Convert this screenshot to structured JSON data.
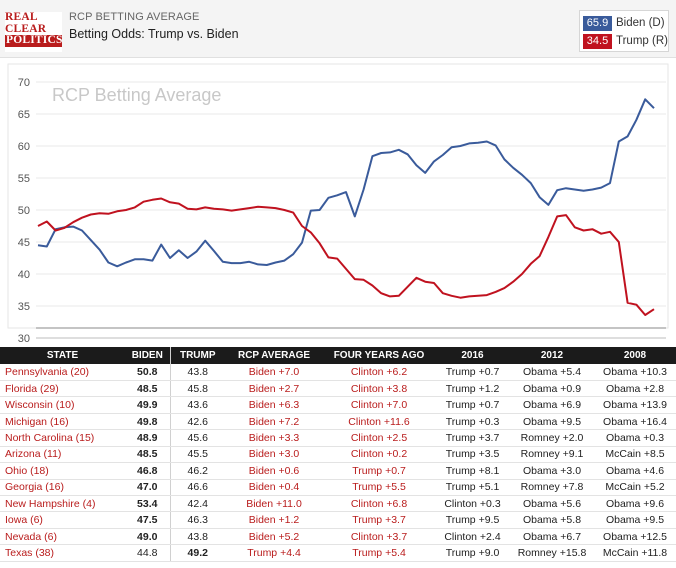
{
  "header": {
    "logo_lines": [
      "REAL",
      "CLEAR",
      "POLITICS"
    ],
    "subtitle": "RCP BETTING AVERAGE",
    "title": "Betting Odds: Trump vs. Biden"
  },
  "legend": [
    {
      "value": "65.9",
      "name": "Biden (D)",
      "color": "#3a5b9b"
    },
    {
      "value": "34.5",
      "name": "Trump (R)",
      "color": "#c0121f"
    }
  ],
  "chart_data": {
    "type": "line",
    "title": "RCP Betting Average",
    "ylim": [
      30,
      70
    ],
    "yticks": [
      "30",
      "35",
      "40",
      "45",
      "50",
      "55",
      "60",
      "65",
      "70"
    ],
    "grid": true,
    "series": [
      {
        "name": "Biden (D)",
        "color": "#3a5b9b",
        "values": [
          44.5,
          44.3,
          47.0,
          47.3,
          47.4,
          46.8,
          45.3,
          43.8,
          41.8,
          41.2,
          41.8,
          42.3,
          42.3,
          42.1,
          44.6,
          42.5,
          43.7,
          42.5,
          43.5,
          45.2,
          43.6,
          41.9,
          41.7,
          41.7,
          41.9,
          41.5,
          41.4,
          41.8,
          42.1,
          43.1,
          44.9,
          49.9,
          50.0,
          51.9,
          52.3,
          52.8,
          49.0,
          53.2,
          58.4,
          58.9,
          59.0,
          59.4,
          58.7,
          57.0,
          55.8,
          57.6,
          58.6,
          59.8,
          60.0,
          60.4,
          60.5,
          60.7,
          60.1,
          57.9,
          56.6,
          55.5,
          54.2,
          52.0,
          50.8,
          53.1,
          53.4,
          53.2,
          53.0,
          53.2,
          53.5,
          54.2,
          60.7,
          61.5,
          64.1,
          67.3,
          65.9
        ]
      },
      {
        "name": "Trump (R)",
        "color": "#c0121f",
        "values": [
          47.5,
          48.2,
          46.8,
          47.2,
          48.1,
          48.8,
          49.3,
          49.5,
          49.4,
          49.8,
          50.0,
          50.4,
          51.3,
          51.6,
          51.8,
          51.2,
          51.0,
          50.2,
          50.1,
          50.4,
          50.2,
          50.1,
          49.9,
          50.1,
          50.3,
          50.5,
          50.4,
          50.3,
          50.0,
          49.6,
          47.5,
          46.5,
          44.8,
          42.6,
          42.4,
          40.8,
          39.2,
          39.1,
          38.2,
          37.0,
          36.5,
          36.6,
          38.0,
          39.4,
          38.8,
          38.6,
          37.0,
          36.6,
          36.3,
          36.5,
          36.6,
          36.7,
          37.2,
          37.8,
          38.8,
          40.0,
          41.6,
          42.8,
          45.8,
          49.0,
          49.2,
          47.3,
          46.8,
          47.0,
          46.3,
          46.6,
          45.0,
          35.5,
          35.2,
          33.6,
          34.5
        ]
      }
    ]
  },
  "table": {
    "columns": [
      "STATE",
      "BIDEN",
      "TRUMP",
      "RCP AVERAGE",
      "FOUR YEARS AGO",
      "2016",
      "2012",
      "2008"
    ],
    "rows": [
      {
        "state": "Pennsylvania (20)",
        "biden": "50.8",
        "trump": "43.8",
        "rcp": "Biden +7.0",
        "four": "Clinton +6.2",
        "y2016": "Trump +0.7",
        "y2012": "Obama +5.4",
        "y2008": "Obama +10.3",
        "lead": "biden"
      },
      {
        "state": "Florida (29)",
        "biden": "48.5",
        "trump": "45.8",
        "rcp": "Biden +2.7",
        "four": "Clinton +3.8",
        "y2016": "Trump +1.2",
        "y2012": "Obama +0.9",
        "y2008": "Obama +2.8",
        "lead": "biden"
      },
      {
        "state": "Wisconsin (10)",
        "biden": "49.9",
        "trump": "43.6",
        "rcp": "Biden +6.3",
        "four": "Clinton +7.0",
        "y2016": "Trump +0.7",
        "y2012": "Obama +6.9",
        "y2008": "Obama +13.9",
        "lead": "biden"
      },
      {
        "state": "Michigan (16)",
        "biden": "49.8",
        "trump": "42.6",
        "rcp": "Biden +7.2",
        "four": "Clinton +11.6",
        "y2016": "Trump +0.3",
        "y2012": "Obama +9.5",
        "y2008": "Obama +16.4",
        "lead": "biden"
      },
      {
        "state": "North Carolina (15)",
        "biden": "48.9",
        "trump": "45.6",
        "rcp": "Biden +3.3",
        "four": "Clinton +2.5",
        "y2016": "Trump +3.7",
        "y2012": "Romney +2.0",
        "y2008": "Obama +0.3",
        "lead": "biden"
      },
      {
        "state": "Arizona (11)",
        "biden": "48.5",
        "trump": "45.5",
        "rcp": "Biden +3.0",
        "four": "Clinton +0.2",
        "y2016": "Trump +3.5",
        "y2012": "Romney +9.1",
        "y2008": "McCain +8.5",
        "lead": "biden"
      },
      {
        "state": "Ohio (18)",
        "biden": "46.8",
        "trump": "46.2",
        "rcp": "Biden +0.6",
        "four": "Trump +0.7",
        "y2016": "Trump +8.1",
        "y2012": "Obama +3.0",
        "y2008": "Obama +4.6",
        "lead": "biden"
      },
      {
        "state": "Georgia (16)",
        "biden": "47.0",
        "trump": "46.6",
        "rcp": "Biden +0.4",
        "four": "Trump +5.5",
        "y2016": "Trump +5.1",
        "y2012": "Romney +7.8",
        "y2008": "McCain +5.2",
        "lead": "biden"
      },
      {
        "state": "New Hampshire (4)",
        "biden": "53.4",
        "trump": "42.4",
        "rcp": "Biden +11.0",
        "four": "Clinton +6.8",
        "y2016": "Clinton +0.3",
        "y2012": "Obama +5.6",
        "y2008": "Obama +9.6",
        "lead": "biden"
      },
      {
        "state": "Iowa (6)",
        "biden": "47.5",
        "trump": "46.3",
        "rcp": "Biden +1.2",
        "four": "Trump +3.7",
        "y2016": "Trump +9.5",
        "y2012": "Obama +5.8",
        "y2008": "Obama +9.5",
        "lead": "biden"
      },
      {
        "state": "Nevada (6)",
        "biden": "49.0",
        "trump": "43.8",
        "rcp": "Biden +5.2",
        "four": "Clinton +3.7",
        "y2016": "Clinton +2.4",
        "y2012": "Obama +6.7",
        "y2008": "Obama +12.5",
        "lead": "biden"
      },
      {
        "state": "Texas (38)",
        "biden": "44.8",
        "trump": "49.2",
        "rcp": "Trump +4.4",
        "four": "Trump +5.4",
        "y2016": "Trump +9.0",
        "y2012": "Romney +15.8",
        "y2008": "McCain +11.8",
        "lead": "trump"
      }
    ]
  }
}
